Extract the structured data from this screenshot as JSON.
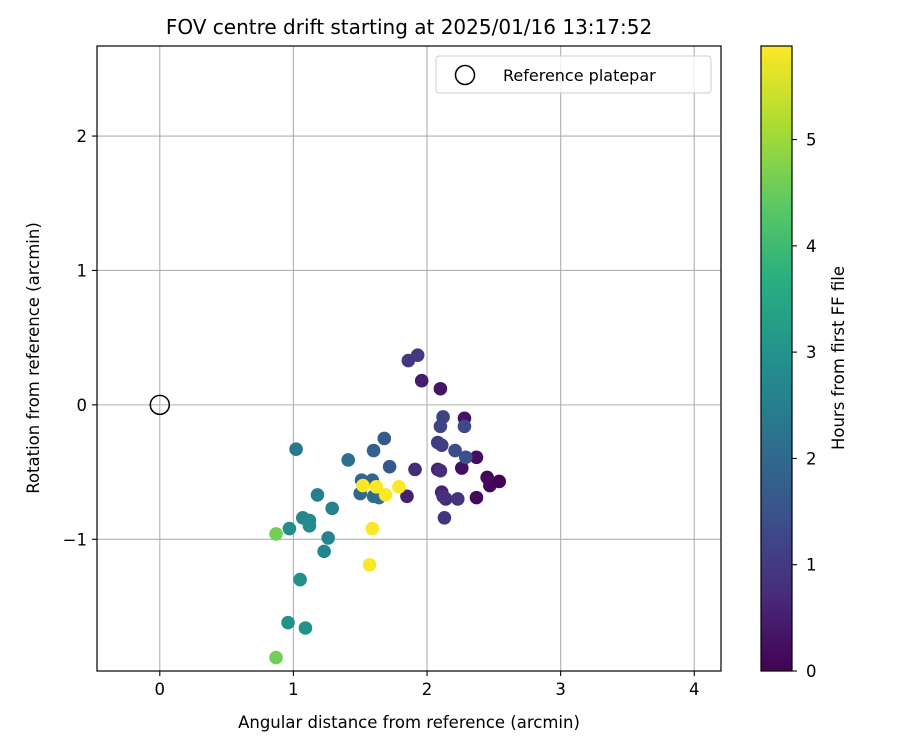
{
  "chart_data": {
    "type": "scatter",
    "title": "FOV centre drift starting at 2025/01/16 13:17:52",
    "xlabel": "Angular distance from reference (arcmin)",
    "ylabel": "Rotation from reference (arcmin)",
    "xlim": [
      -0.47,
      4.2
    ],
    "ylim": [
      -1.98,
      2.67
    ],
    "xticks": [
      0,
      1,
      2,
      3,
      4
    ],
    "yticks": [
      -1,
      0,
      1,
      2
    ],
    "xtick_labels": [
      "0",
      "1",
      "2",
      "3",
      "4"
    ],
    "ytick_labels": [
      "−1",
      "0",
      "1",
      "2"
    ],
    "grid": true,
    "legend": {
      "position": "top-right",
      "entries": [
        {
          "label": "Reference platepar",
          "marker": "open-circle"
        }
      ]
    },
    "reference_point": {
      "x": 0,
      "y": 0
    },
    "colorbar": {
      "label": "Hours from first FF file",
      "colormap": "viridis",
      "range": [
        0,
        5.88
      ],
      "ticks": [
        0,
        1,
        2,
        3,
        4,
        5
      ],
      "tick_labels": [
        "0",
        "1",
        "2",
        "3",
        "4",
        "5"
      ]
    },
    "points": [
      {
        "x": 2.54,
        "y": -0.57,
        "t": 0.0
      },
      {
        "x": 2.47,
        "y": -0.6,
        "t": 0.05
      },
      {
        "x": 2.45,
        "y": -0.54,
        "t": 0.1
      },
      {
        "x": 2.37,
        "y": -0.69,
        "t": 0.15
      },
      {
        "x": 2.37,
        "y": -0.39,
        "t": 0.2
      },
      {
        "x": 2.26,
        "y": -0.47,
        "t": 0.25
      },
      {
        "x": 2.28,
        "y": -0.1,
        "t": 0.3
      },
      {
        "x": 2.1,
        "y": 0.12,
        "t": 0.35
      },
      {
        "x": 1.96,
        "y": 0.18,
        "t": 0.45
      },
      {
        "x": 1.85,
        "y": -0.68,
        "t": 0.5
      },
      {
        "x": 2.08,
        "y": -0.48,
        "t": 0.55
      },
      {
        "x": 2.11,
        "y": -0.65,
        "t": 0.6
      },
      {
        "x": 2.14,
        "y": -0.7,
        "t": 0.65
      },
      {
        "x": 1.91,
        "y": -0.48,
        "t": 0.7
      },
      {
        "x": 2.1,
        "y": -0.49,
        "t": 0.75
      },
      {
        "x": 2.12,
        "y": -0.68,
        "t": 0.8
      },
      {
        "x": 2.23,
        "y": -0.7,
        "t": 0.85
      },
      {
        "x": 2.13,
        "y": -0.84,
        "t": 0.9
      },
      {
        "x": 1.86,
        "y": 0.33,
        "t": 0.95
      },
      {
        "x": 1.93,
        "y": 0.37,
        "t": 1.0
      },
      {
        "x": 2.08,
        "y": -0.28,
        "t": 1.05
      },
      {
        "x": 2.11,
        "y": -0.3,
        "t": 1.1
      },
      {
        "x": 2.12,
        "y": -0.09,
        "t": 1.15
      },
      {
        "x": 2.1,
        "y": -0.16,
        "t": 1.2
      },
      {
        "x": 2.28,
        "y": -0.16,
        "t": 1.3
      },
      {
        "x": 2.21,
        "y": -0.34,
        "t": 1.35
      },
      {
        "x": 2.29,
        "y": -0.39,
        "t": 1.45
      },
      {
        "x": 1.72,
        "y": -0.46,
        "t": 1.6
      },
      {
        "x": 1.68,
        "y": -0.25,
        "t": 1.7
      },
      {
        "x": 1.6,
        "y": -0.34,
        "t": 1.8
      },
      {
        "x": 1.59,
        "y": -0.56,
        "t": 1.9
      },
      {
        "x": 1.51,
        "y": -0.56,
        "t": 1.95
      },
      {
        "x": 1.5,
        "y": -0.66,
        "t": 2.0
      },
      {
        "x": 1.6,
        "y": -0.68,
        "t": 2.05
      },
      {
        "x": 1.64,
        "y": -0.69,
        "t": 2.1
      },
      {
        "x": 1.41,
        "y": -0.41,
        "t": 2.15
      },
      {
        "x": 1.02,
        "y": -0.33,
        "t": 2.35
      },
      {
        "x": 1.18,
        "y": -0.67,
        "t": 2.5
      },
      {
        "x": 1.29,
        "y": -0.77,
        "t": 2.55
      },
      {
        "x": 1.26,
        "y": -0.99,
        "t": 2.6
      },
      {
        "x": 1.23,
        "y": -1.09,
        "t": 2.65
      },
      {
        "x": 1.07,
        "y": -0.84,
        "t": 2.7
      },
      {
        "x": 1.12,
        "y": -0.86,
        "t": 2.75
      },
      {
        "x": 1.12,
        "y": -0.9,
        "t": 2.8
      },
      {
        "x": 0.97,
        "y": -0.92,
        "t": 2.85
      },
      {
        "x": 1.05,
        "y": -1.3,
        "t": 2.9
      },
      {
        "x": 0.96,
        "y": -1.62,
        "t": 2.95
      },
      {
        "x": 1.09,
        "y": -1.66,
        "t": 3.0
      },
      {
        "x": 0.87,
        "y": -0.96,
        "t": 4.6
      },
      {
        "x": 0.87,
        "y": -1.88,
        "t": 4.6
      },
      {
        "x": 1.52,
        "y": -0.6,
        "t": 5.85
      },
      {
        "x": 1.62,
        "y": -0.61,
        "t": 5.85
      },
      {
        "x": 1.69,
        "y": -0.67,
        "t": 5.85
      },
      {
        "x": 1.79,
        "y": -0.61,
        "t": 5.85
      },
      {
        "x": 1.59,
        "y": -0.92,
        "t": 5.85
      },
      {
        "x": 1.57,
        "y": -1.19,
        "t": 5.85
      }
    ]
  }
}
